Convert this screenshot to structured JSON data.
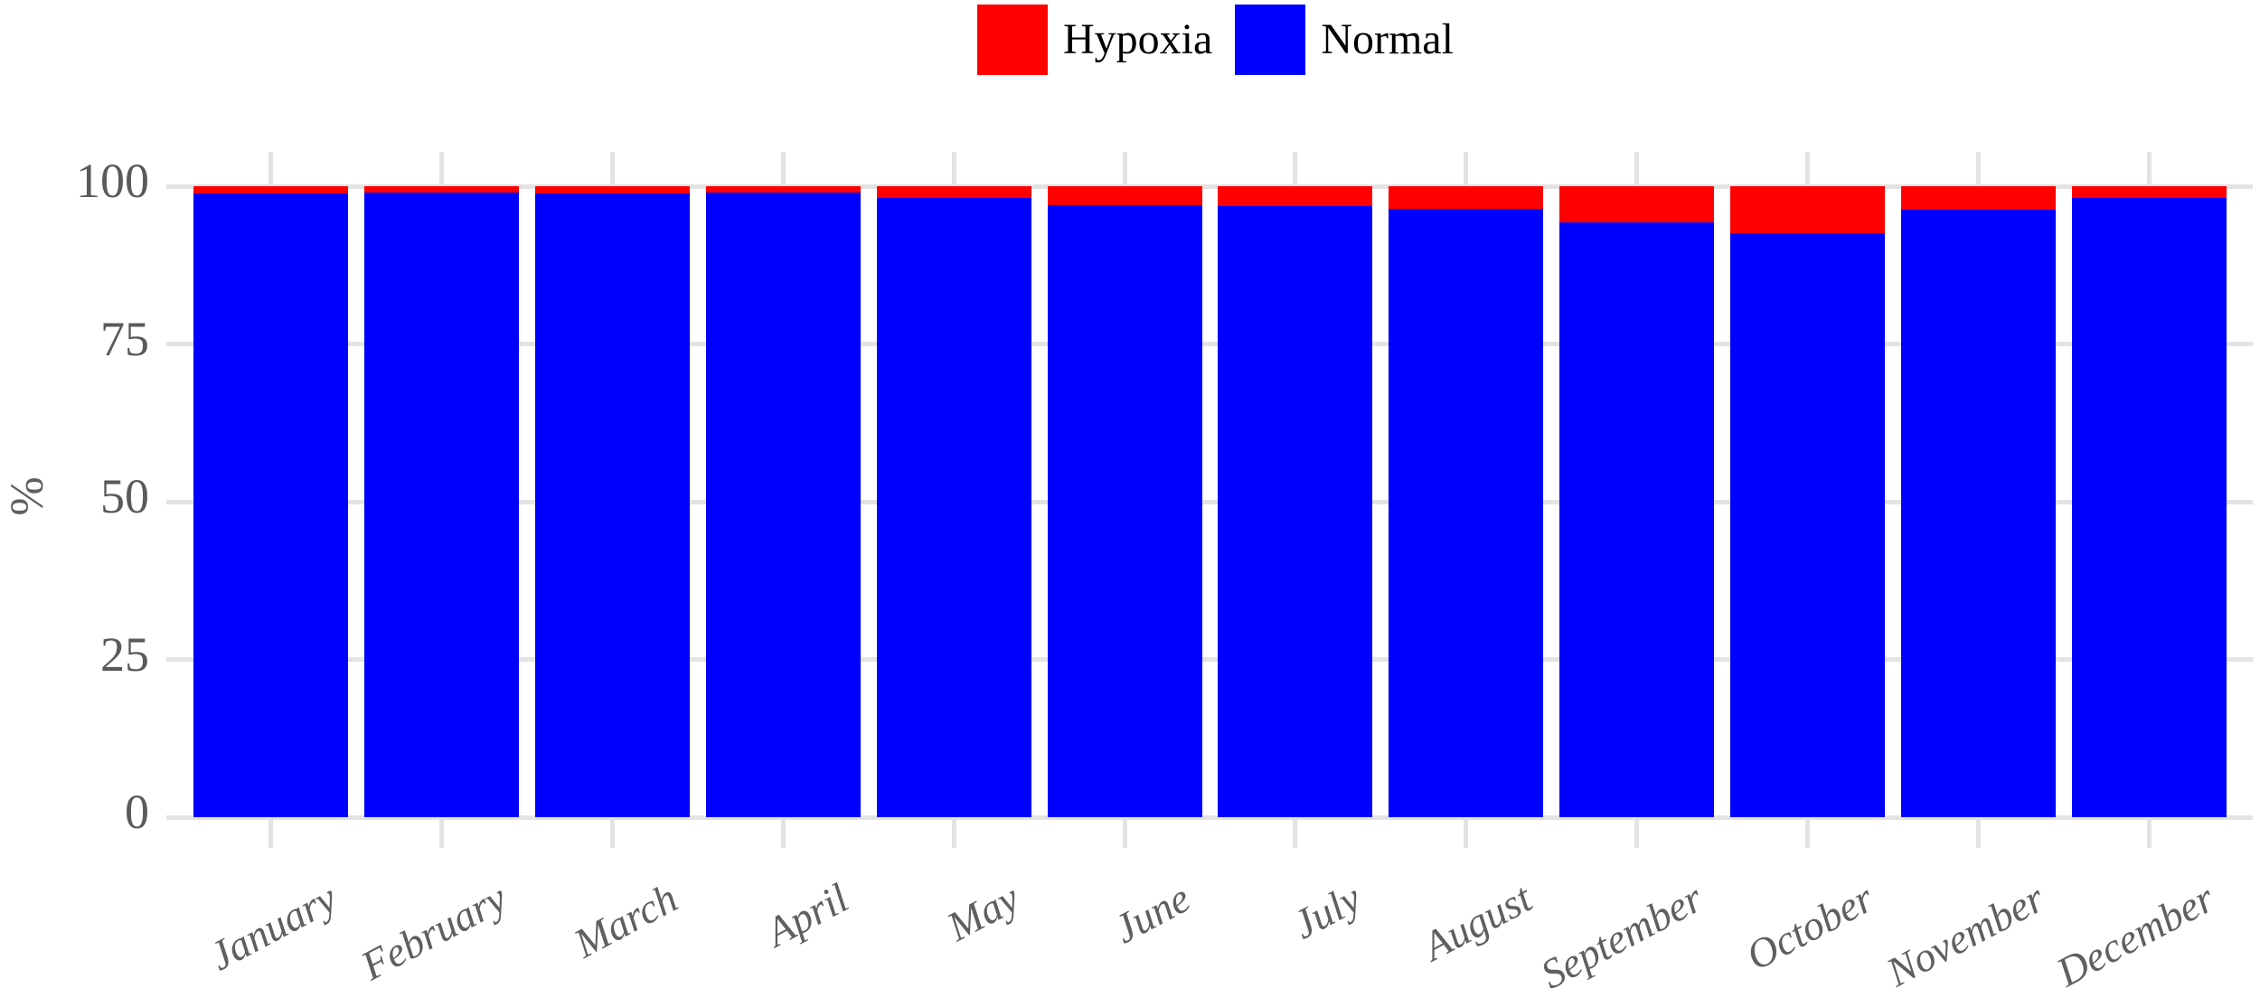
{
  "chart_data": {
    "type": "bar",
    "stacked": true,
    "title": "",
    "categories": [
      "January",
      "February",
      "March",
      "April",
      "May",
      "June",
      "July",
      "August",
      "September",
      "October",
      "November",
      "December"
    ],
    "series": [
      {
        "name": "Hypoxia",
        "color": "#FF0000",
        "values": [
          1.1,
          1.0,
          1.1,
          1.0,
          1.8,
          3.0,
          3.1,
          3.6,
          5.8,
          7.5,
          3.7,
          1.9
        ]
      },
      {
        "name": "Normal",
        "color": "#0000FF",
        "values": [
          98.9,
          99.0,
          98.9,
          99.0,
          98.2,
          97.0,
          96.9,
          96.4,
          94.2,
          92.5,
          96.3,
          98.1
        ]
      }
    ],
    "xlabel": "",
    "ylabel": "%",
    "ylim": [
      0,
      100
    ],
    "yticks": [
      0,
      25,
      50,
      75,
      100
    ],
    "ytick_labels": [
      "0",
      "25",
      "50",
      "75",
      "100"
    ],
    "grid": true,
    "legend_position": "top-center",
    "colors": {
      "grid": "#E3E3E3",
      "axis_text": "#5A5A5A",
      "legend_text": "#000000",
      "background": "#FFFFFF"
    }
  }
}
